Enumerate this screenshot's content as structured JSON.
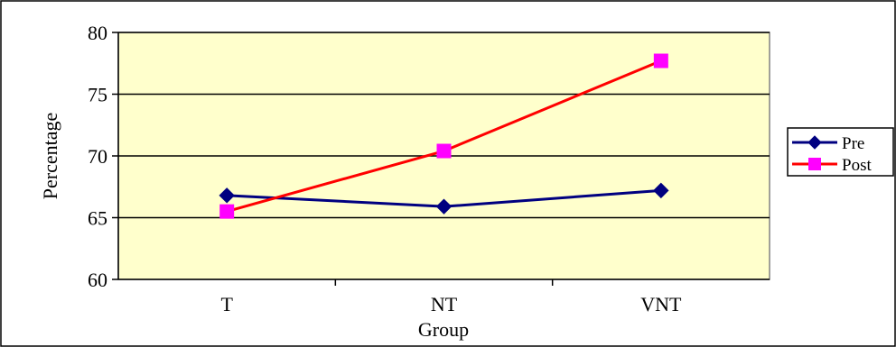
{
  "chart_data": {
    "type": "line",
    "title": "",
    "xlabel": "Group",
    "ylabel": "Percentage",
    "categories": [
      "T",
      "NT",
      "VNT"
    ],
    "ylim": [
      60,
      80
    ],
    "yticks": [
      60,
      65,
      70,
      75,
      80
    ],
    "grid": "horizontal",
    "legend_position": "right",
    "plot_background": "#ffffcc",
    "series": [
      {
        "name": "Pre",
        "values": [
          66.8,
          65.9,
          67.2
        ],
        "color": "#000080",
        "marker": "diamond"
      },
      {
        "name": "Post",
        "values": [
          65.5,
          70.4,
          77.7
        ],
        "color": "#ff0000",
        "marker_color": "#ff00ff",
        "marker": "square"
      }
    ]
  }
}
